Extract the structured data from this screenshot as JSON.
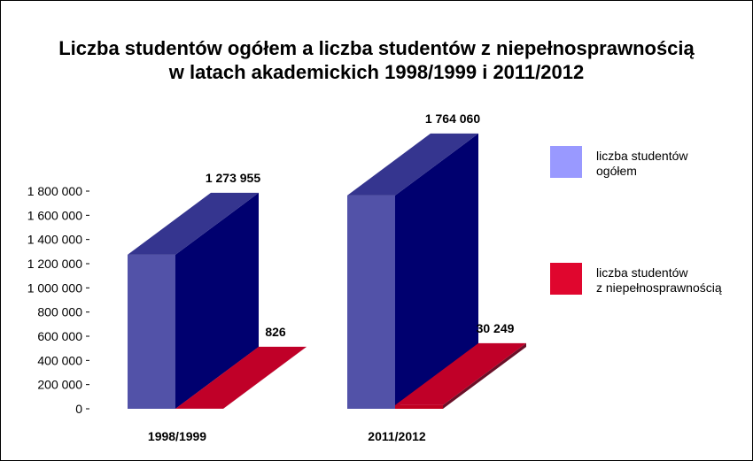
{
  "chart_data": {
    "type": "bar",
    "title": [
      "Liczba studentów ogółem a liczba studentów z niepełnosprawnością",
      "w latach akademickich 1998/1999 i 2011/2012"
    ],
    "xlabel": "",
    "ylabel": "",
    "categories": [
      "1998/1999",
      "2011/2012"
    ],
    "ylim": [
      0,
      1800000
    ],
    "yticks": [
      0,
      200000,
      400000,
      600000,
      800000,
      1000000,
      1200000,
      1400000,
      1600000,
      1800000
    ],
    "ytick_labels": [
      "0",
      "200 000",
      "400 000",
      "600 000",
      "800 000",
      "1 000 000",
      "1 200 000",
      "1 400 000",
      "1 600 000",
      "1 800 000"
    ],
    "grid": false,
    "legend_position": "right",
    "series": [
      {
        "name": [
          "liczba studentów",
          "ogółem"
        ],
        "values": [
          1273955,
          1764060
        ],
        "labels": [
          "1 273 955",
          "1 764 060"
        ],
        "colors": {
          "front": "#5252a8",
          "side": "#00006f",
          "top": "#35358f",
          "legend": "#9999ff"
        }
      },
      {
        "name": [
          "liczba studentów",
          "z niepełnosprawnością"
        ],
        "values": [
          826,
          30249
        ],
        "labels": [
          "826",
          "30 249"
        ],
        "colors": {
          "front": "#c00020",
          "side": "#6a1028",
          "top": "#c00028",
          "legend": "#e0062e"
        }
      }
    ]
  }
}
